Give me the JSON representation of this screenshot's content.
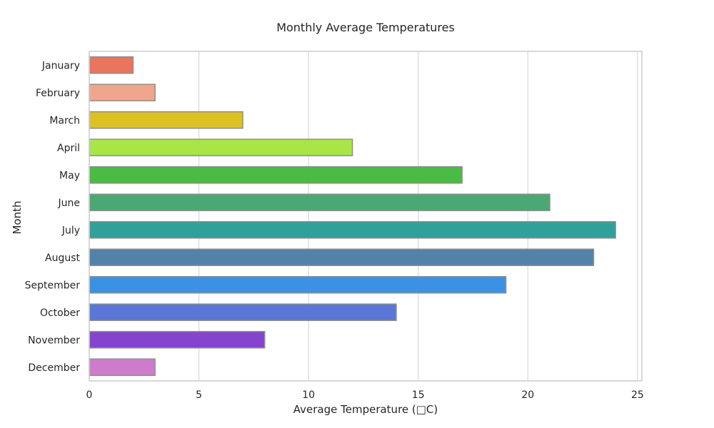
{
  "chart_data": {
    "type": "bar",
    "orientation": "horizontal",
    "title": "Monthly Average Temperatures",
    "xlabel": "Average Temperature (□C)",
    "ylabel": "Month",
    "xlim": [
      0,
      25.2
    ],
    "xticks": [
      0,
      5,
      10,
      15,
      20,
      25
    ],
    "categories": [
      "January",
      "February",
      "March",
      "April",
      "May",
      "June",
      "July",
      "August",
      "September",
      "October",
      "November",
      "December"
    ],
    "values": [
      2,
      3,
      7,
      12,
      17,
      21,
      24,
      23,
      19,
      14,
      8,
      3
    ],
    "colors": [
      "#e9755f",
      "#efa68c",
      "#dcc124",
      "#a7e646",
      "#48bc43",
      "#4ba874",
      "#2fa19a",
      "#5282a8",
      "#3b92e4",
      "#5a76d6",
      "#8544d0",
      "#cd7ccb"
    ],
    "grid": true,
    "legend": "none"
  }
}
